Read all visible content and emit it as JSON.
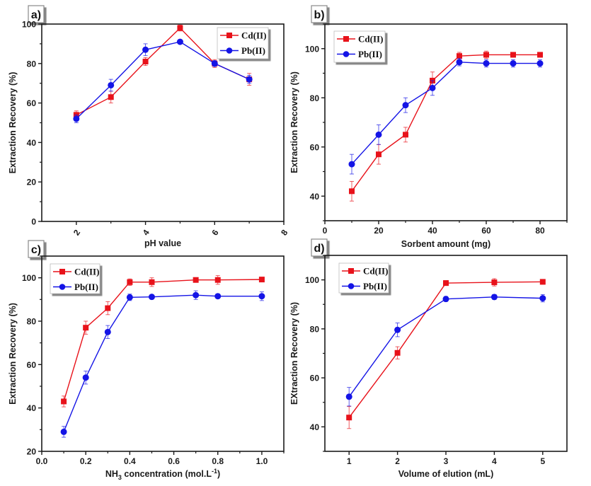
{
  "figure": {
    "colors": {
      "cd": "#e8121a",
      "pb": "#1414e6",
      "axis": "#1a1a1a"
    }
  },
  "chart_data": [
    {
      "type": "line",
      "panel": "a)",
      "xlabel": "pH value",
      "ylabel": "Extraction Recovery (%)",
      "xlim": [
        1,
        8
      ],
      "ylim": [
        0,
        100
      ],
      "xticks": [
        2,
        4,
        6,
        8
      ],
      "xticks_minor": [
        3,
        5,
        7
      ],
      "xtick_rotated": true,
      "yticks": [
        0,
        20,
        40,
        60,
        80,
        100
      ],
      "legend_position": "top-right",
      "series": [
        {
          "name": "Cd(II)",
          "marker": "square",
          "x": [
            2,
            3,
            4,
            5,
            6,
            7
          ],
          "values": [
            54,
            63,
            81,
            98,
            80,
            72
          ],
          "errors": [
            2,
            3,
            2,
            1.5,
            2,
            3
          ]
        },
        {
          "name": "Pb(II)",
          "marker": "circle",
          "x": [
            2,
            3,
            4,
            5,
            6,
            7
          ],
          "values": [
            52,
            69,
            87,
            91,
            80,
            72
          ],
          "errors": [
            2,
            3,
            3,
            1,
            1.5,
            2
          ]
        }
      ]
    },
    {
      "type": "line",
      "panel": "b)",
      "xlabel": "Sorbent amount (mg)",
      "ylabel": "Extraction Recovery (%)",
      "xlim": [
        0,
        90
      ],
      "ylim": [
        30,
        110
      ],
      "xticks": [
        0,
        20,
        40,
        60,
        80
      ],
      "xticks_minor": [
        10,
        30,
        50,
        70,
        90
      ],
      "xtick_rotated": false,
      "yticks": [
        40,
        60,
        80,
        100
      ],
      "legend_position": "top-left",
      "series": [
        {
          "name": "Cd(II)",
          "marker": "square",
          "x": [
            10,
            20,
            30,
            40,
            50,
            60,
            70,
            80
          ],
          "values": [
            42,
            57,
            65,
            87,
            97,
            97.5,
            97.5,
            97.5
          ],
          "errors": [
            4,
            4,
            3,
            3.5,
            1.5,
            1.5,
            1,
            1
          ]
        },
        {
          "name": "Pb(II)",
          "marker": "circle",
          "x": [
            10,
            20,
            30,
            40,
            50,
            60,
            70,
            80
          ],
          "values": [
            53,
            65,
            77,
            84,
            94.5,
            94,
            94,
            94
          ],
          "errors": [
            4,
            4,
            3,
            3,
            1.5,
            1.5,
            1.5,
            1.5
          ]
        }
      ]
    },
    {
      "type": "line",
      "panel": "c)",
      "xlabel": "NH3 concentration (mol.L-1)",
      "xlabel_parts": {
        "pre": "NH",
        "sub": "3",
        "mid": " concentration (mol.L",
        "sup": "-1",
        "post": ")"
      },
      "ylabel": "Extraction Recovery (%)",
      "xlim": [
        0,
        1.1
      ],
      "ylim": [
        20,
        110
      ],
      "xticks": [
        0.0,
        0.2,
        0.4,
        0.6,
        0.8,
        1.0
      ],
      "xtick_labels": [
        "0.0",
        "0.2",
        "0.4",
        "0.6",
        "0.8",
        "1.0"
      ],
      "xticks_minor": [
        0.1,
        0.3,
        0.5,
        0.7,
        0.9,
        1.1
      ],
      "xtick_rotated": false,
      "yticks": [
        20,
        40,
        60,
        80,
        100
      ],
      "legend_position": "top-left",
      "series": [
        {
          "name": "Cd(II)",
          "marker": "square",
          "x": [
            0.1,
            0.2,
            0.3,
            0.4,
            0.5,
            0.7,
            0.8,
            1.0
          ],
          "values": [
            43,
            77,
            86,
            98,
            98,
            99,
            99,
            99.2
          ],
          "errors": [
            2.5,
            3,
            3,
            1.5,
            2,
            1,
            2,
            1
          ]
        },
        {
          "name": "Pb(II)",
          "marker": "circle",
          "x": [
            0.1,
            0.2,
            0.3,
            0.4,
            0.5,
            0.7,
            0.8,
            1.0
          ],
          "values": [
            29,
            54,
            75,
            91,
            91.2,
            92,
            91.5,
            91.5
          ],
          "errors": [
            2.5,
            3,
            3,
            1.5,
            1,
            2,
            1,
            2
          ]
        }
      ]
    },
    {
      "type": "line",
      "panel": "d)",
      "xlabel": "Volume of elution (mL)",
      "ylabel": "EXtraction Recovery (%)",
      "xlim": [
        0.5,
        5.5
      ],
      "ylim": [
        30,
        110
      ],
      "xticks": [
        1,
        2,
        3,
        4,
        5
      ],
      "xticks_minor": [],
      "xtick_rotated": false,
      "yticks": [
        40,
        60,
        80,
        100
      ],
      "legend_position": "top-left",
      "series": [
        {
          "name": "Cd(II)",
          "marker": "square",
          "x": [
            1,
            2,
            3,
            4,
            5
          ],
          "values": [
            43.8,
            70.2,
            98.7,
            99,
            99.2
          ],
          "errors": [
            4.5,
            2.5,
            1,
            1.5,
            1
          ]
        },
        {
          "name": "Pb(II)",
          "marker": "circle",
          "x": [
            1,
            2,
            3,
            4,
            5
          ],
          "values": [
            52.3,
            79.6,
            92.2,
            93,
            92.5
          ],
          "errors": [
            3.8,
            2.8,
            1,
            1,
            1.5
          ]
        }
      ]
    }
  ]
}
